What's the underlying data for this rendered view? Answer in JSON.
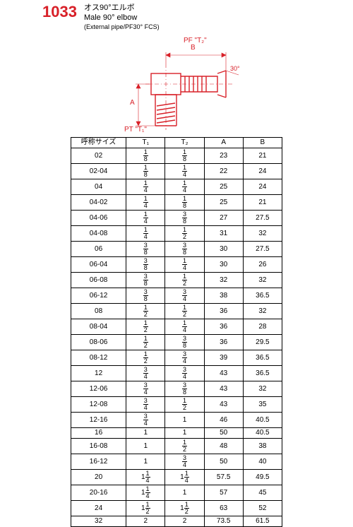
{
  "header": {
    "part_number": "1033",
    "title_jp": "オス90°エルボ",
    "title_en": "Male 90° elbow",
    "subtitle": "(External pipe/PF30° FCS)",
    "color_accent": "#d82028"
  },
  "diagram": {
    "labels": {
      "pf": "PF \"T₂\"",
      "pt": "PT \"T₁\"",
      "A": "A",
      "B": "B",
      "angle": "30°"
    }
  },
  "table": {
    "headers": [
      "呼称サイズ",
      "T₁",
      "T₂",
      "A",
      "B"
    ],
    "rows": [
      {
        "size": "02",
        "t1": "1/8",
        "t2": "1/8",
        "a": "23",
        "b": "21"
      },
      {
        "size": "02-04",
        "t1": "1/8",
        "t2": "1/4",
        "a": "22",
        "b": "24"
      },
      {
        "size": "04",
        "t1": "1/4",
        "t2": "1/4",
        "a": "25",
        "b": "24"
      },
      {
        "size": "04-02",
        "t1": "1/4",
        "t2": "1/8",
        "a": "25",
        "b": "21"
      },
      {
        "size": "04-06",
        "t1": "1/4",
        "t2": "3/8",
        "a": "27",
        "b": "27.5"
      },
      {
        "size": "04-08",
        "t1": "1/4",
        "t2": "1/2",
        "a": "31",
        "b": "32"
      },
      {
        "size": "06",
        "t1": "3/8",
        "t2": "3/8",
        "a": "30",
        "b": "27.5"
      },
      {
        "size": "06-04",
        "t1": "3/8",
        "t2": "1/4",
        "a": "30",
        "b": "26"
      },
      {
        "size": "06-08",
        "t1": "3/8",
        "t2": "1/2",
        "a": "32",
        "b": "32"
      },
      {
        "size": "06-12",
        "t1": "3/8",
        "t2": "3/4",
        "a": "38",
        "b": "36.5"
      },
      {
        "size": "08",
        "t1": "1/2",
        "t2": "1/2",
        "a": "36",
        "b": "32"
      },
      {
        "size": "08-04",
        "t1": "1/2",
        "t2": "1/4",
        "a": "36",
        "b": "28"
      },
      {
        "size": "08-06",
        "t1": "1/2",
        "t2": "3/8",
        "a": "36",
        "b": "29.5"
      },
      {
        "size": "08-12",
        "t1": "1/2",
        "t2": "3/4",
        "a": "39",
        "b": "36.5"
      },
      {
        "size": "12",
        "t1": "3/4",
        "t2": "3/4",
        "a": "43",
        "b": "36.5"
      },
      {
        "size": "12-06",
        "t1": "3/4",
        "t2": "3/8",
        "a": "43",
        "b": "32"
      },
      {
        "size": "12-08",
        "t1": "3/4",
        "t2": "1/2",
        "a": "43",
        "b": "35"
      },
      {
        "size": "12-16",
        "t1": "3/4",
        "t2": "1",
        "a": "46",
        "b": "40.5"
      },
      {
        "size": "16",
        "t1": "1",
        "t2": "1",
        "a": "50",
        "b": "40.5"
      },
      {
        "size": "16-08",
        "t1": "1",
        "t2": "1/2",
        "a": "48",
        "b": "38"
      },
      {
        "size": "16-12",
        "t1": "1",
        "t2": "3/4",
        "a": "50",
        "b": "40"
      },
      {
        "size": "20",
        "t1": "1 1/4",
        "t2": "1 1/4",
        "a": "57.5",
        "b": "49.5"
      },
      {
        "size": "20-16",
        "t1": "1 1/4",
        "t2": "1",
        "a": "57",
        "b": "45"
      },
      {
        "size": "24",
        "t1": "1 1/2",
        "t2": "1 1/2",
        "a": "63",
        "b": "52"
      },
      {
        "size": "32",
        "t1": "2",
        "t2": "2",
        "a": "73.5",
        "b": "61.5"
      }
    ]
  }
}
